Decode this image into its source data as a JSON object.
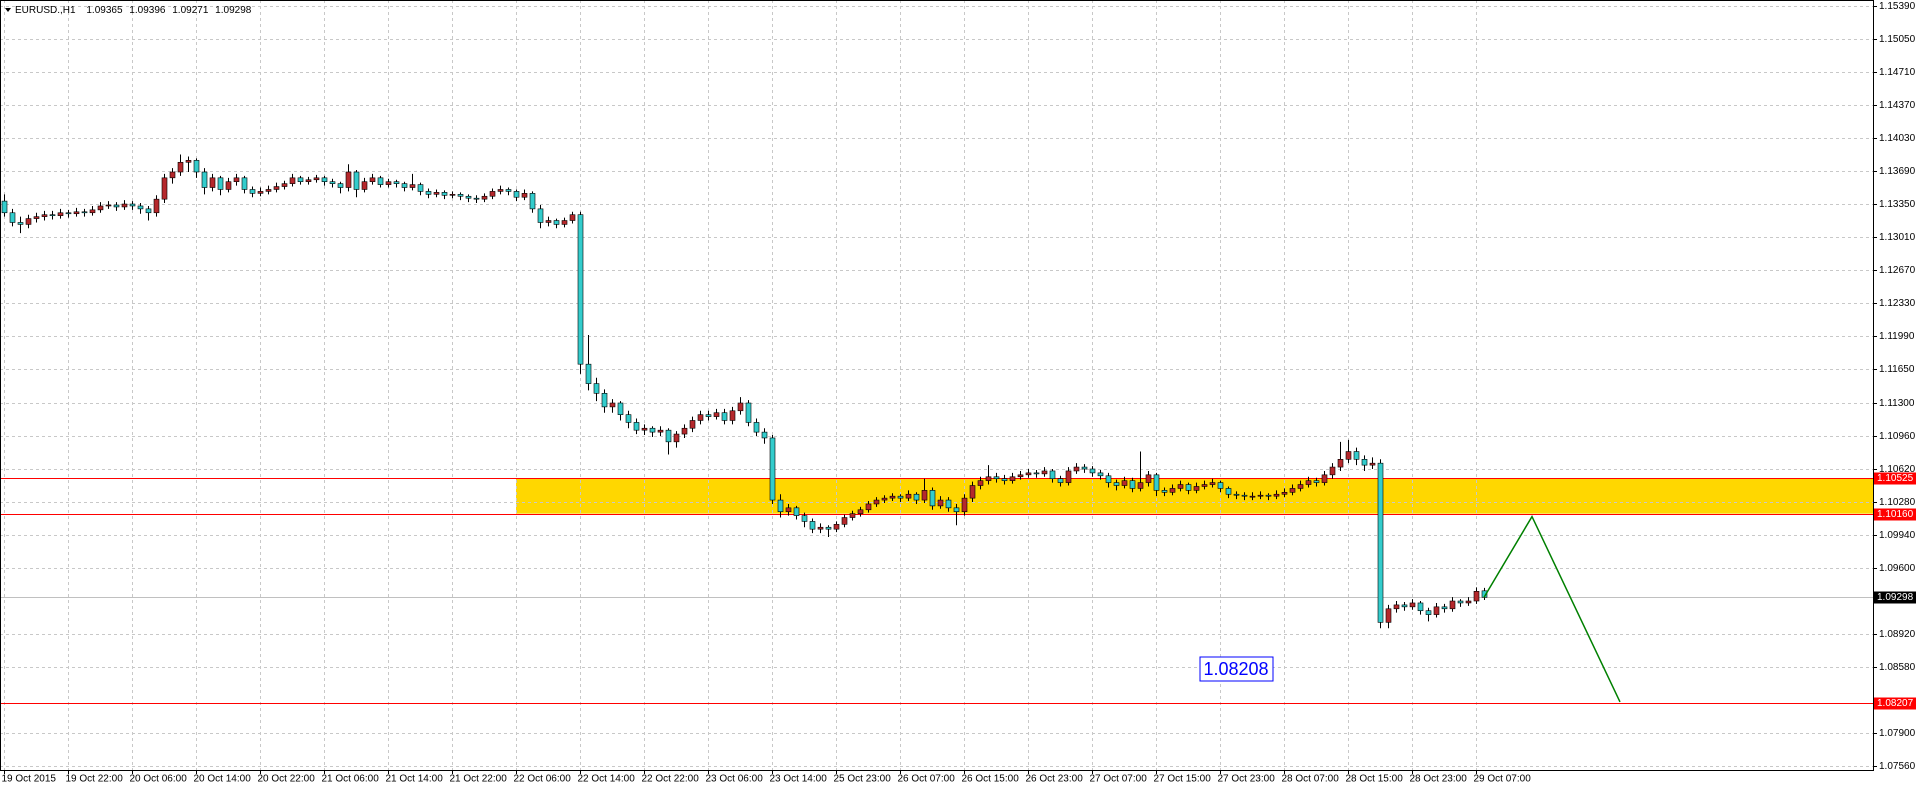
{
  "chart_data": {
    "type": "candlestick",
    "symbol": "EURUSD.,H1",
    "up_color": "#b5282c",
    "down_color": "#33cccc",
    "grid": true,
    "ylim": [
      1.07519,
      1.15452
    ],
    "yticks": [
      {
        "value": 1.1539,
        "label": "1.15390"
      },
      {
        "value": 1.1505,
        "label": "1.15050"
      },
      {
        "value": 1.1471,
        "label": "1.14710"
      },
      {
        "value": 1.1437,
        "label": "1.14370"
      },
      {
        "value": 1.1403,
        "label": "1.14030"
      },
      {
        "value": 1.1369,
        "label": "1.13690"
      },
      {
        "value": 1.1335,
        "label": "1.13350"
      },
      {
        "value": 1.1301,
        "label": "1.13010"
      },
      {
        "value": 1.1267,
        "label": "1.12670"
      },
      {
        "value": 1.1233,
        "label": "1.12330"
      },
      {
        "value": 1.1199,
        "label": "1.11990"
      },
      {
        "value": 1.1165,
        "label": "1.11650"
      },
      {
        "value": 1.113,
        "label": "1.11300"
      },
      {
        "value": 1.1096,
        "label": "1.10960"
      },
      {
        "value": 1.1062,
        "label": "1.10620"
      },
      {
        "value": 1.1028,
        "label": "1.10280"
      },
      {
        "value": 1.0994,
        "label": "1.09940"
      },
      {
        "value": 1.096,
        "label": "1.09600"
      },
      {
        "value": 1.0892,
        "label": "1.08920"
      },
      {
        "value": 1.0858,
        "label": "1.08580"
      },
      {
        "value": 1.079,
        "label": "1.07900"
      },
      {
        "value": 1.0756,
        "label": "1.07560"
      }
    ],
    "categories": [
      "19 Oct 2015",
      null,
      null,
      null,
      null,
      null,
      null,
      null,
      "19 Oct 22:00",
      null,
      null,
      null,
      null,
      null,
      null,
      null,
      "20 Oct 06:00",
      null,
      null,
      null,
      null,
      null,
      null,
      null,
      "20 Oct 14:00",
      null,
      null,
      null,
      null,
      null,
      null,
      null,
      "20 Oct 22:00",
      null,
      null,
      null,
      null,
      null,
      null,
      null,
      "21 Oct 06:00",
      null,
      null,
      null,
      null,
      null,
      null,
      null,
      "21 Oct 14:00",
      null,
      null,
      null,
      null,
      null,
      null,
      null,
      "21 Oct 22:00",
      null,
      null,
      null,
      null,
      null,
      null,
      null,
      "22 Oct 06:00",
      null,
      null,
      null,
      null,
      null,
      null,
      null,
      "22 Oct 14:00",
      null,
      null,
      null,
      null,
      null,
      null,
      null,
      "22 Oct 22:00",
      null,
      null,
      null,
      null,
      null,
      null,
      null,
      "23 Oct 06:00",
      null,
      null,
      null,
      null,
      null,
      null,
      null,
      "23 Oct 14:00",
      null,
      null,
      null,
      null,
      null,
      null,
      null,
      "25 Oct 23:00",
      null,
      null,
      null,
      null,
      null,
      null,
      null,
      "26 Oct 07:00",
      null,
      null,
      null,
      null,
      null,
      null,
      null,
      "26 Oct 15:00",
      null,
      null,
      null,
      null,
      null,
      null,
      null,
      "26 Oct 23:00",
      null,
      null,
      null,
      null,
      null,
      null,
      null,
      "27 Oct 07:00",
      null,
      null,
      null,
      null,
      null,
      null,
      null,
      "27 Oct 15:00",
      null,
      null,
      null,
      null,
      null,
      null,
      null,
      "27 Oct 23:00",
      null,
      null,
      null,
      null,
      null,
      null,
      null,
      "28 Oct 07:00",
      null,
      null,
      null,
      null,
      null,
      null,
      null,
      "28 Oct 15:00",
      null,
      null,
      null,
      null,
      null,
      null,
      null,
      "28 Oct 23:00",
      null,
      null,
      null,
      null,
      null,
      null,
      null,
      "29 Oct 07:00",
      null
    ],
    "ohlc": [
      [
        1.1338,
        1.1345,
        1.1322,
        1.1326
      ],
      [
        1.1326,
        1.133,
        1.1312,
        1.1316
      ],
      [
        1.1316,
        1.1322,
        1.1305,
        1.1314
      ],
      [
        1.1314,
        1.1324,
        1.131,
        1.132
      ],
      [
        1.132,
        1.1326,
        1.1316,
        1.1322
      ],
      [
        1.1322,
        1.1328,
        1.1318,
        1.1324
      ],
      [
        1.1324,
        1.1328,
        1.1319,
        1.1323
      ],
      [
        1.1323,
        1.133,
        1.132,
        1.1326
      ],
      [
        1.1326,
        1.1329,
        1.1321,
        1.1325
      ],
      [
        1.1325,
        1.1331,
        1.1322,
        1.1327
      ],
      [
        1.1327,
        1.133,
        1.1322,
        1.1326
      ],
      [
        1.1326,
        1.1333,
        1.1323,
        1.1329
      ],
      [
        1.1329,
        1.1337,
        1.1326,
        1.1333
      ],
      [
        1.1333,
        1.1338,
        1.133,
        1.1334
      ],
      [
        1.1334,
        1.1337,
        1.1328,
        1.1332
      ],
      [
        1.1332,
        1.1339,
        1.1329,
        1.1335
      ],
      [
        1.1335,
        1.1338,
        1.1329,
        1.1333
      ],
      [
        1.1333,
        1.1336,
        1.1325,
        1.133
      ],
      [
        1.133,
        1.1333,
        1.1318,
        1.1326
      ],
      [
        1.1326,
        1.1344,
        1.1322,
        1.134
      ],
      [
        1.134,
        1.1366,
        1.1336,
        1.1362
      ],
      [
        1.1362,
        1.1372,
        1.1356,
        1.1368
      ],
      [
        1.1368,
        1.1386,
        1.1364,
        1.1378
      ],
      [
        1.1378,
        1.1384,
        1.1368,
        1.138
      ],
      [
        1.138,
        1.1382,
        1.1362,
        1.1368
      ],
      [
        1.1368,
        1.1372,
        1.1345,
        1.1352
      ],
      [
        1.1352,
        1.1366,
        1.1348,
        1.1362
      ],
      [
        1.1362,
        1.1364,
        1.1344,
        1.135
      ],
      [
        1.135,
        1.1362,
        1.1347,
        1.1358
      ],
      [
        1.1358,
        1.1366,
        1.1354,
        1.1362
      ],
      [
        1.1362,
        1.1364,
        1.1346,
        1.135
      ],
      [
        1.135,
        1.1353,
        1.1342,
        1.1346
      ],
      [
        1.1346,
        1.1352,
        1.1343,
        1.1348
      ],
      [
        1.1348,
        1.1354,
        1.1345,
        1.135
      ],
      [
        1.135,
        1.1357,
        1.1347,
        1.1353
      ],
      [
        1.1353,
        1.1359,
        1.135,
        1.1356
      ],
      [
        1.1356,
        1.1366,
        1.1353,
        1.1362
      ],
      [
        1.1362,
        1.1364,
        1.1355,
        1.1358
      ],
      [
        1.1358,
        1.1363,
        1.1355,
        1.136
      ],
      [
        1.136,
        1.1365,
        1.1357,
        1.1362
      ],
      [
        1.1362,
        1.1364,
        1.1354,
        1.1358
      ],
      [
        1.1358,
        1.1361,
        1.1352,
        1.1356
      ],
      [
        1.1356,
        1.1358,
        1.1346,
        1.1352
      ],
      [
        1.1352,
        1.1376,
        1.1348,
        1.1368
      ],
      [
        1.1368,
        1.137,
        1.1342,
        1.135
      ],
      [
        1.135,
        1.1362,
        1.1347,
        1.1358
      ],
      [
        1.1358,
        1.1366,
        1.1355,
        1.1362
      ],
      [
        1.1362,
        1.1364,
        1.1352,
        1.1355
      ],
      [
        1.1355,
        1.1361,
        1.1352,
        1.1358
      ],
      [
        1.1358,
        1.136,
        1.1352,
        1.1356
      ],
      [
        1.1356,
        1.1358,
        1.1348,
        1.1352
      ],
      [
        1.1352,
        1.1366,
        1.1349,
        1.1355
      ],
      [
        1.1355,
        1.1357,
        1.1344,
        1.1348
      ],
      [
        1.1348,
        1.1351,
        1.1341,
        1.1345
      ],
      [
        1.1345,
        1.135,
        1.1342,
        1.1347
      ],
      [
        1.1347,
        1.1349,
        1.134,
        1.1344
      ],
      [
        1.1344,
        1.1348,
        1.1341,
        1.1345
      ],
      [
        1.1345,
        1.1347,
        1.1339,
        1.1343
      ],
      [
        1.1343,
        1.1345,
        1.1337,
        1.1341
      ],
      [
        1.1341,
        1.1344,
        1.1336,
        1.134
      ],
      [
        1.134,
        1.1346,
        1.1337,
        1.1343
      ],
      [
        1.1343,
        1.1351,
        1.134,
        1.1348
      ],
      [
        1.1348,
        1.1354,
        1.1345,
        1.135
      ],
      [
        1.135,
        1.1352,
        1.1344,
        1.1348
      ],
      [
        1.1348,
        1.135,
        1.1338,
        1.1342
      ],
      [
        1.1342,
        1.135,
        1.1339,
        1.1346
      ],
      [
        1.1346,
        1.1348,
        1.1326,
        1.133
      ],
      [
        1.133,
        1.1334,
        1.131,
        1.1316
      ],
      [
        1.1316,
        1.1322,
        1.1312,
        1.1318
      ],
      [
        1.1318,
        1.132,
        1.131,
        1.1314
      ],
      [
        1.1314,
        1.1321,
        1.1311,
        1.1318
      ],
      [
        1.1318,
        1.1327,
        1.1315,
        1.1324
      ],
      [
        1.1324,
        1.1327,
        1.116,
        1.117
      ],
      [
        1.117,
        1.12,
        1.1143,
        1.115
      ],
      [
        1.115,
        1.1156,
        1.1132,
        1.114
      ],
      [
        1.114,
        1.1144,
        1.112,
        1.1126
      ],
      [
        1.1126,
        1.1134,
        1.112,
        1.113
      ],
      [
        1.113,
        1.1132,
        1.1112,
        1.1118
      ],
      [
        1.1118,
        1.1122,
        1.1104,
        1.111
      ],
      [
        1.111,
        1.1114,
        1.1098,
        1.1102
      ],
      [
        1.1102,
        1.1108,
        1.1097,
        1.1104
      ],
      [
        1.1104,
        1.1106,
        1.1095,
        1.11
      ],
      [
        1.11,
        1.1106,
        1.1096,
        1.1102
      ],
      [
        1.1102,
        1.1104,
        1.1077,
        1.109
      ],
      [
        1.109,
        1.1101,
        1.1084,
        1.1098
      ],
      [
        1.1098,
        1.1108,
        1.1094,
        1.1104
      ],
      [
        1.1104,
        1.1116,
        1.11,
        1.1112
      ],
      [
        1.1112,
        1.1122,
        1.1108,
        1.1118
      ],
      [
        1.1118,
        1.1122,
        1.1112,
        1.1116
      ],
      [
        1.1116,
        1.1124,
        1.1113,
        1.112
      ],
      [
        1.112,
        1.1124,
        1.1108,
        1.1112
      ],
      [
        1.1112,
        1.1126,
        1.1108,
        1.1122
      ],
      [
        1.1122,
        1.1136,
        1.1118,
        1.113
      ],
      [
        1.113,
        1.1133,
        1.1106,
        1.111
      ],
      [
        1.111,
        1.1114,
        1.1096,
        1.11
      ],
      [
        1.11,
        1.1104,
        1.1088,
        1.1094
      ],
      [
        1.1094,
        1.1097,
        1.1026,
        1.103
      ],
      [
        1.103,
        1.1036,
        1.1012,
        1.1018
      ],
      [
        1.1018,
        1.1026,
        1.1014,
        1.1022
      ],
      [
        1.1022,
        1.1024,
        1.101,
        1.1014
      ],
      [
        1.1014,
        1.1017,
        1.1002,
        1.1008
      ],
      [
        1.1008,
        1.1011,
        1.0996,
        1.1
      ],
      [
        1.1,
        1.1006,
        1.0996,
        1.1002
      ],
      [
        1.1002,
        1.1004,
        1.0992,
        1.1
      ],
      [
        1.1,
        1.1008,
        1.0997,
        1.1005
      ],
      [
        1.1005,
        1.1015,
        1.1002,
        1.1012
      ],
      [
        1.1012,
        1.1019,
        1.1009,
        1.1016
      ],
      [
        1.1016,
        1.1023,
        1.1013,
        1.102
      ],
      [
        1.102,
        1.1029,
        1.1017,
        1.1026
      ],
      [
        1.1026,
        1.1033,
        1.1023,
        1.103
      ],
      [
        1.103,
        1.1035,
        1.1027,
        1.1032
      ],
      [
        1.1032,
        1.1037,
        1.1029,
        1.1034
      ],
      [
        1.1034,
        1.1036,
        1.1028,
        1.1032
      ],
      [
        1.1032,
        1.104,
        1.1029,
        1.1036
      ],
      [
        1.1036,
        1.1038,
        1.1026,
        1.103
      ],
      [
        1.103,
        1.1052,
        1.1027,
        1.104
      ],
      [
        1.104,
        1.1043,
        1.102,
        1.1024
      ],
      [
        1.1024,
        1.1034,
        1.1021,
        1.103
      ],
      [
        1.103,
        1.1033,
        1.1018,
        1.1022
      ],
      [
        1.1022,
        1.1026,
        1.1004,
        1.1018
      ],
      [
        1.1018,
        1.1036,
        1.1014,
        1.1032
      ],
      [
        1.1032,
        1.1049,
        1.1028,
        1.1045
      ],
      [
        1.1045,
        1.1054,
        1.1041,
        1.105
      ],
      [
        1.105,
        1.1066,
        1.1046,
        1.1054
      ],
      [
        1.1054,
        1.1058,
        1.1048,
        1.1052
      ],
      [
        1.1052,
        1.1056,
        1.1046,
        1.105
      ],
      [
        1.105,
        1.1058,
        1.1047,
        1.1054
      ],
      [
        1.1054,
        1.106,
        1.1051,
        1.1056
      ],
      [
        1.1056,
        1.1062,
        1.1053,
        1.1058
      ],
      [
        1.1058,
        1.1061,
        1.1053,
        1.1057
      ],
      [
        1.1057,
        1.1064,
        1.1054,
        1.106
      ],
      [
        1.106,
        1.1062,
        1.1048,
        1.1052
      ],
      [
        1.1052,
        1.1055,
        1.1044,
        1.1048
      ],
      [
        1.1048,
        1.1064,
        1.1045,
        1.106
      ],
      [
        1.106,
        1.1068,
        1.1057,
        1.1064
      ],
      [
        1.1064,
        1.1067,
        1.1058,
        1.1062
      ],
      [
        1.1062,
        1.1065,
        1.1054,
        1.1058
      ],
      [
        1.1058,
        1.1061,
        1.1051,
        1.1055
      ],
      [
        1.1055,
        1.1058,
        1.1043,
        1.1048
      ],
      [
        1.1048,
        1.1051,
        1.104,
        1.1045
      ],
      [
        1.1045,
        1.1054,
        1.1042,
        1.105
      ],
      [
        1.105,
        1.1053,
        1.1038,
        1.1042
      ],
      [
        1.1042,
        1.108,
        1.1039,
        1.1048
      ],
      [
        1.1048,
        1.106,
        1.1044,
        1.1056
      ],
      [
        1.1056,
        1.1058,
        1.1034,
        1.104
      ],
      [
        1.104,
        1.1043,
        1.1034,
        1.1038
      ],
      [
        1.1038,
        1.1046,
        1.1035,
        1.1042
      ],
      [
        1.1042,
        1.105,
        1.1039,
        1.1046
      ],
      [
        1.1046,
        1.1048,
        1.1036,
        1.104
      ],
      [
        1.104,
        1.1048,
        1.1037,
        1.1044
      ],
      [
        1.1044,
        1.105,
        1.1041,
        1.1046
      ],
      [
        1.1046,
        1.1052,
        1.1043,
        1.1048
      ],
      [
        1.1048,
        1.105,
        1.1038,
        1.1042
      ],
      [
        1.1042,
        1.1044,
        1.1032,
        1.1036
      ],
      [
        1.1036,
        1.1039,
        1.1031,
        1.1035
      ],
      [
        1.1035,
        1.1038,
        1.103,
        1.1034
      ],
      [
        1.1034,
        1.1038,
        1.103,
        1.1034
      ],
      [
        1.1034,
        1.1039,
        1.1031,
        1.1035
      ],
      [
        1.1035,
        1.1037,
        1.103,
        1.1034
      ],
      [
        1.1034,
        1.104,
        1.1031,
        1.1036
      ],
      [
        1.1036,
        1.1042,
        1.1033,
        1.1038
      ],
      [
        1.1038,
        1.1046,
        1.1035,
        1.1042
      ],
      [
        1.1042,
        1.105,
        1.1039,
        1.1046
      ],
      [
        1.1046,
        1.1054,
        1.1043,
        1.105
      ],
      [
        1.105,
        1.1053,
        1.1044,
        1.1048
      ],
      [
        1.1048,
        1.106,
        1.1045,
        1.1056
      ],
      [
        1.1056,
        1.1068,
        1.1052,
        1.1064
      ],
      [
        1.1064,
        1.109,
        1.106,
        1.1072
      ],
      [
        1.1072,
        1.1092,
        1.1068,
        1.108
      ],
      [
        1.108,
        1.1084,
        1.1066,
        1.1072
      ],
      [
        1.1072,
        1.1076,
        1.106,
        1.1066
      ],
      [
        1.1066,
        1.1074,
        1.1062,
        1.1068
      ],
      [
        1.1068,
        1.1072,
        1.0898,
        1.0904
      ],
      [
        1.0904,
        1.0922,
        1.0898,
        1.0918
      ],
      [
        1.0918,
        1.0926,
        1.0914,
        1.0922
      ],
      [
        1.0922,
        1.0925,
        1.0916,
        1.092
      ],
      [
        1.092,
        1.0928,
        1.0917,
        1.0924
      ],
      [
        1.0924,
        1.0926,
        1.0912,
        1.0916
      ],
      [
        1.0916,
        1.0919,
        1.0905,
        1.0912
      ],
      [
        1.0912,
        1.0924,
        1.0909,
        1.092
      ],
      [
        1.092,
        1.0923,
        1.0914,
        1.0918
      ],
      [
        1.0918,
        1.093,
        1.0915,
        1.0926
      ],
      [
        1.0926,
        1.0928,
        1.092,
        1.0924
      ],
      [
        1.0924,
        1.093,
        1.0921,
        1.0926
      ],
      [
        1.0926,
        1.094,
        1.0923,
        1.0936
      ],
      [
        1.09365,
        1.09396,
        1.09271,
        1.09298
      ]
    ],
    "levels": [
      {
        "value": 1.10525,
        "color": "#ff0000"
      },
      {
        "value": 1.1016,
        "label": "1.10160",
        "color": "#ff0000"
      },
      {
        "value": 1.08207,
        "color": "#ff0000"
      }
    ],
    "zone": {
      "start": "22 Oct 06:00",
      "color": "#ffd700"
    },
    "price_line_color": "#c0c0c0",
    "projection": {
      "x": [
        185,
        191,
        202
      ],
      "values": [
        1.09298,
        1.1013,
        1.0822
      ],
      "color": "#008000"
    },
    "annotation": {
      "text": "1.08208",
      "color": "#0000ff"
    }
  }
}
